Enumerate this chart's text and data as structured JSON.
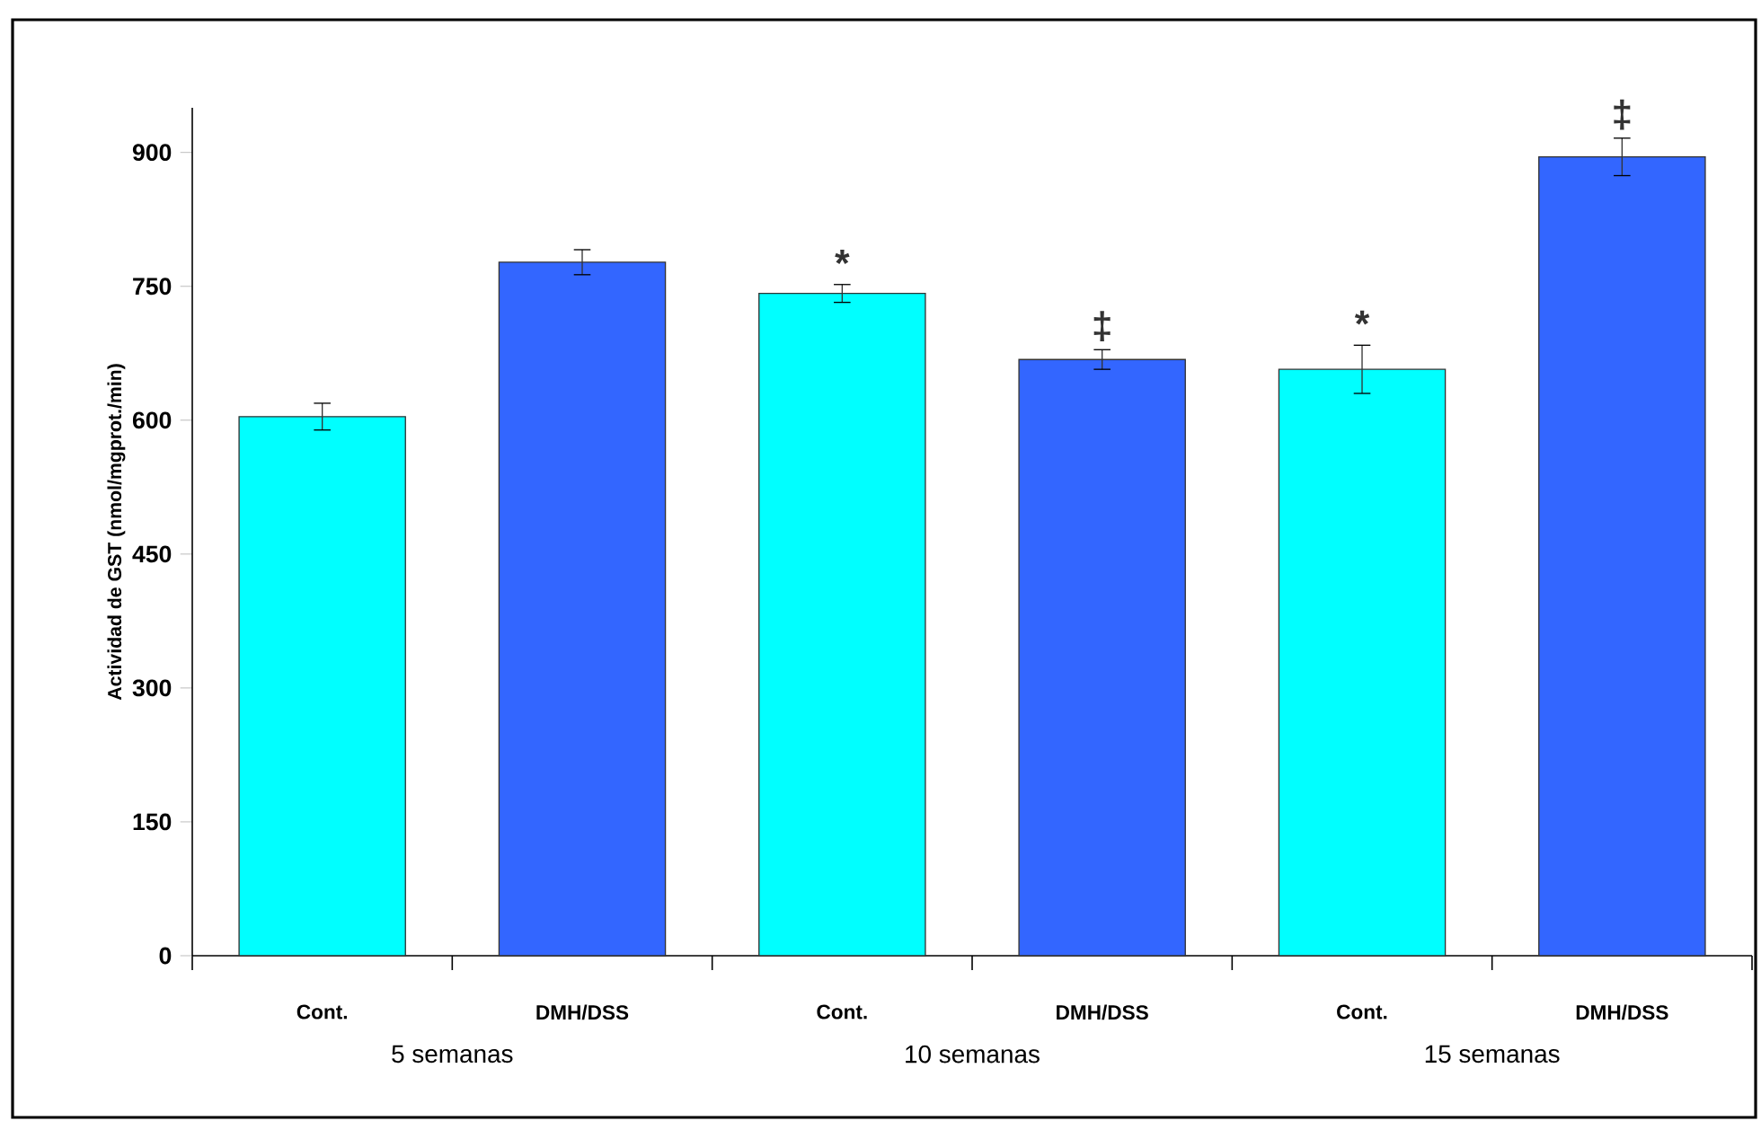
{
  "chart_data": {
    "type": "bar",
    "ylabel": "Actividad de GST (nmol/mgprot./min)",
    "categories": [
      "Cont.",
      "DMH/DSS",
      "Cont.",
      "DMH/DSS",
      "Cont.",
      "DMH/DSS"
    ],
    "values": [
      604,
      777,
      742,
      668,
      657,
      895
    ],
    "errors": [
      15,
      14,
      10,
      11,
      27,
      21
    ],
    "colors": [
      "#00ffff",
      "#3366ff",
      "#00ffff",
      "#3366ff",
      "#00ffff",
      "#3366ff"
    ],
    "value_labels": [
      null,
      null,
      "*",
      "‡",
      "*",
      "‡"
    ],
    "ylim": [
      0,
      950
    ],
    "yticks": [
      0,
      150,
      300,
      450,
      600,
      750,
      900
    ],
    "annotations": [
      "5 semanas",
      "10 semanas",
      "15 semanas"
    ],
    "grid": false
  }
}
